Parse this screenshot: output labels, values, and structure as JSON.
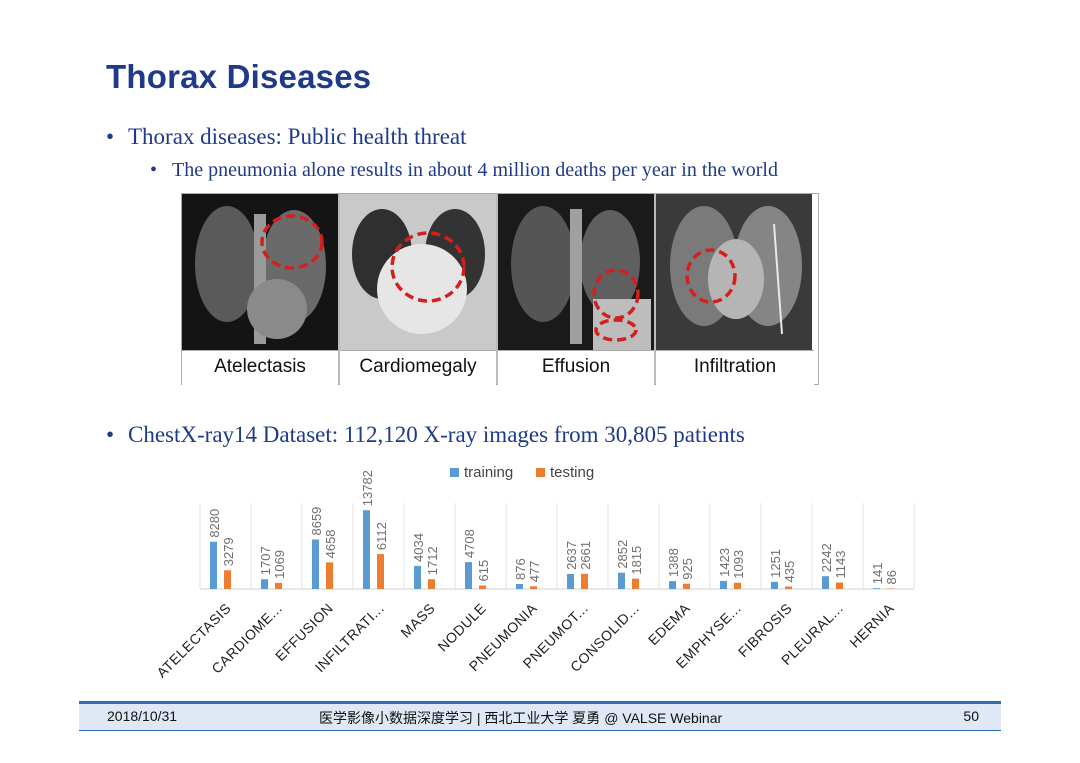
{
  "slide": {
    "title": "Thorax Diseases",
    "bullets": [
      "Thorax diseases: Public health threat",
      "The pneumonia alone results in about 4 million deaths per year in the world",
      "ChestX-ray14 Dataset: 112,120 X-ray images from  30,805 patients"
    ],
    "bullet_symbol": "•"
  },
  "xray_panels": [
    {
      "label": "Atelectasis"
    },
    {
      "label": "Cardiomegaly"
    },
    {
      "label": "Effusion"
    },
    {
      "label": "Infiltration"
    }
  ],
  "chart_data": {
    "type": "bar",
    "categories": [
      "ATELECTASIS",
      "CARDIOME...",
      "EFFUSION",
      "INFILTRATI...",
      "MASS",
      "NODULE",
      "PNEUMONIA",
      "PNEUMOT...",
      "CONSOLID...",
      "EDEMA",
      "EMPHYSE...",
      "FIBROSIS",
      "PLEURAL...",
      "HERNIA"
    ],
    "series": [
      {
        "name": "training",
        "color": "#5b9bd5",
        "values": [
          8280,
          1707,
          8659,
          13782,
          4034,
          4708,
          876,
          2637,
          2852,
          1388,
          1423,
          1251,
          2242,
          141
        ]
      },
      {
        "name": "testing",
        "color": "#ed7d31",
        "values": [
          3279,
          1069,
          4658,
          6112,
          1712,
          615,
          477,
          2661,
          1815,
          925,
          1093,
          435,
          1143,
          86
        ]
      }
    ],
    "legend_position": "top",
    "ylim": [
      0,
      14000
    ],
    "grid": false
  },
  "footer": {
    "date": "2018/10/31",
    "center": "医学影像小数据深度学习 | 西北工业大学 夏勇 @ VALSE Webinar",
    "page": "50"
  }
}
